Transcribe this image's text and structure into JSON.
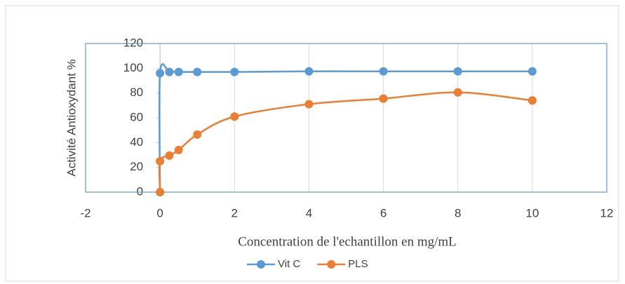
{
  "chart_data": {
    "type": "scatter",
    "x_label": "Concentration de l'echantillon en mg/mL",
    "y_label": "Activité Antioxydant %",
    "xlim": [
      -2,
      12
    ],
    "xticks": [
      -2,
      0,
      2,
      4,
      6,
      8,
      10,
      12
    ],
    "ylim": [
      0,
      120
    ],
    "yticks": [
      0,
      20,
      40,
      60,
      80,
      100,
      120
    ],
    "grid": true,
    "legend": "bottom",
    "series": [
      {
        "name": "Vit C",
        "color": "#5b9bd5",
        "x": [
          0,
          0,
          0.25,
          0.5,
          1,
          2,
          4,
          6,
          8,
          10
        ],
        "values": [
          0,
          96,
          97,
          97,
          97,
          97,
          97.5,
          97.5,
          97.5,
          97.5
        ]
      },
      {
        "name": "PLS",
        "color": "#ed7d31",
        "x": [
          0,
          0,
          0.25,
          0.5,
          1,
          2,
          4,
          6,
          8,
          10
        ],
        "values": [
          0,
          25,
          29.5,
          34,
          46.5,
          61,
          71,
          75.5,
          80.5,
          74
        ]
      }
    ]
  }
}
